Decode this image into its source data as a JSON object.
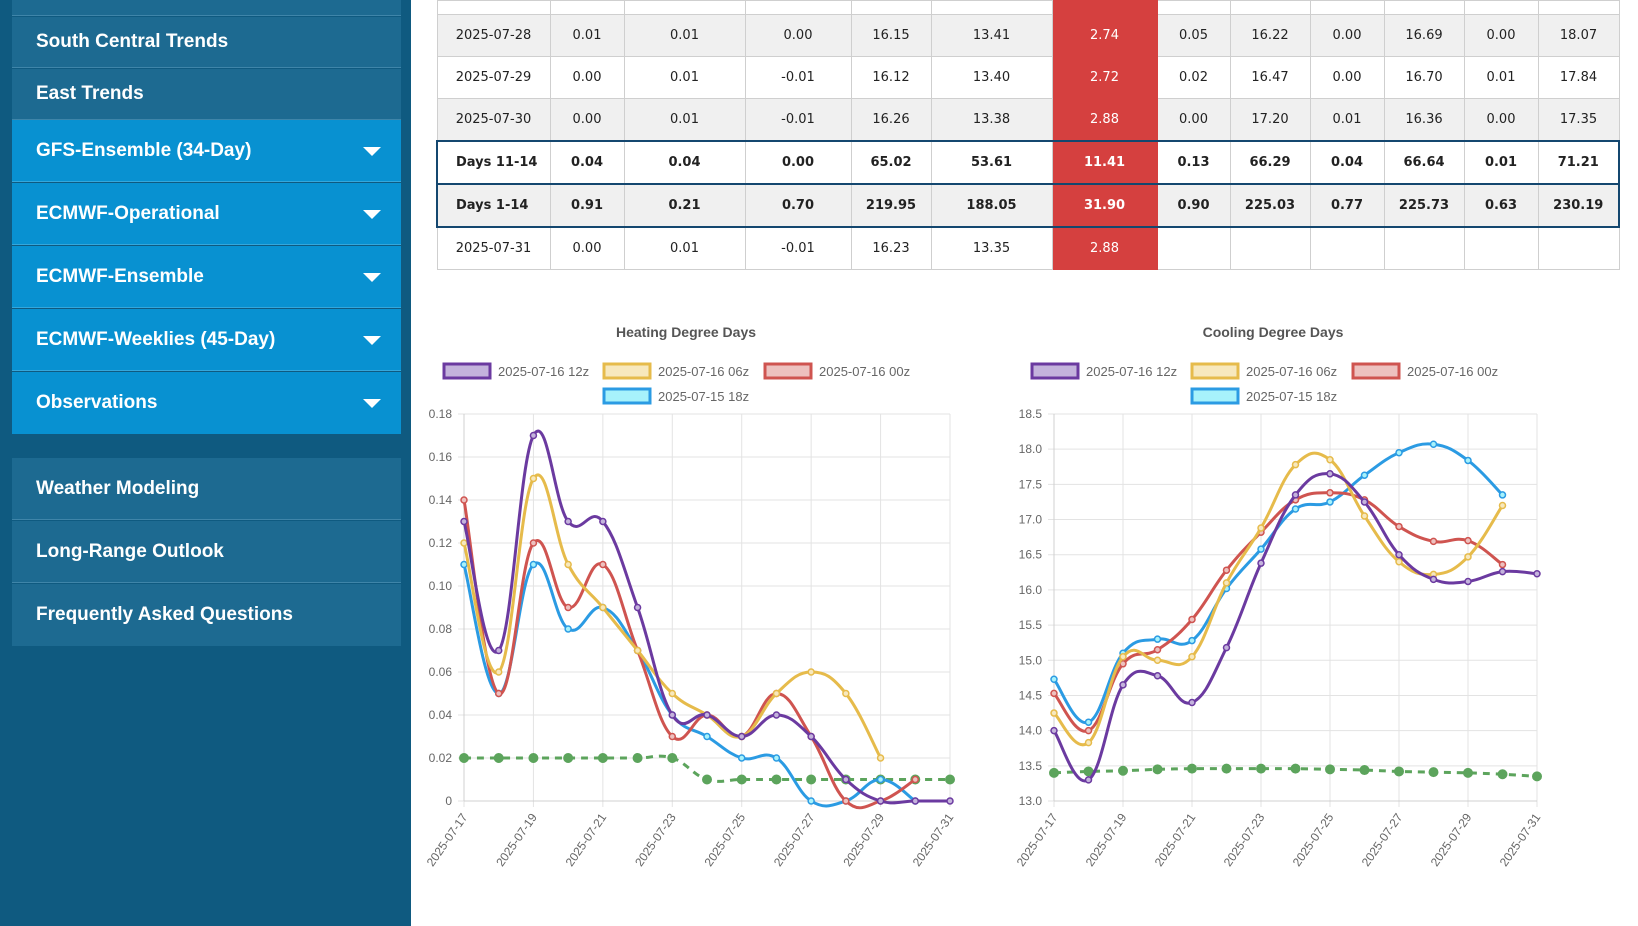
{
  "sidebar": {
    "items": [
      {
        "label": "South Central Trends",
        "has_caret": false
      },
      {
        "label": "East Trends",
        "has_caret": false
      },
      {
        "label": "GFS-Ensemble (34-Day)",
        "has_caret": true
      },
      {
        "label": "ECMWF-Operational",
        "has_caret": true
      },
      {
        "label": "ECMWF-Ensemble",
        "has_caret": true
      },
      {
        "label": "ECMWF-Weeklies (45-Day)",
        "has_caret": true
      },
      {
        "label": "Observations",
        "has_caret": true
      },
      {
        "label": "Weather Modeling",
        "has_caret": false
      },
      {
        "label": "Long-Range Outlook",
        "has_caret": false
      },
      {
        "label": "Frequently Asked Questions",
        "has_caret": false
      }
    ]
  },
  "table": {
    "highlight_color": "#d5403f",
    "rows": [
      [
        "",
        "",
        "",
        "",
        "",
        "",
        "",
        "",
        "",
        "",
        "",
        "",
        ""
      ],
      [
        "2025-07-28",
        "0.01",
        "0.01",
        "0.00",
        "16.15",
        "13.41",
        "2.74",
        "0.05",
        "16.22",
        "0.00",
        "16.69",
        "0.00",
        "18.07"
      ],
      [
        "2025-07-29",
        "0.00",
        "0.01",
        "-0.01",
        "16.12",
        "13.40",
        "2.72",
        "0.02",
        "16.47",
        "0.00",
        "16.70",
        "0.01",
        "17.84"
      ],
      [
        "2025-07-30",
        "0.00",
        "0.01",
        "-0.01",
        "16.26",
        "13.38",
        "2.88",
        "0.00",
        "17.20",
        "0.01",
        "16.36",
        "0.00",
        "17.35"
      ],
      [
        "Days 11-14",
        "0.04",
        "0.04",
        "0.00",
        "65.02",
        "53.61",
        "11.41",
        "0.13",
        "66.29",
        "0.04",
        "66.64",
        "0.01",
        "71.21"
      ],
      [
        "Days 1-14",
        "0.91",
        "0.21",
        "0.70",
        "219.95",
        "188.05",
        "31.90",
        "0.90",
        "225.03",
        "0.77",
        "225.73",
        "0.63",
        "230.19"
      ],
      [
        "2025-07-31",
        "0.00",
        "0.01",
        "-0.01",
        "16.23",
        "13.35",
        "2.88",
        "",
        "",
        "",
        "",
        "",
        ""
      ]
    ]
  },
  "chart_data": [
    {
      "type": "line",
      "title": "Heating Degree Days",
      "x": [
        "2025-07-17",
        "2025-07-18",
        "2025-07-19",
        "2025-07-20",
        "2025-07-21",
        "2025-07-22",
        "2025-07-23",
        "2025-07-24",
        "2025-07-25",
        "2025-07-26",
        "2025-07-27",
        "2025-07-28",
        "2025-07-29",
        "2025-07-30",
        "2025-07-31"
      ],
      "x_tick_labels": [
        "2025-07-17",
        "2025-07-19",
        "2025-07-21",
        "2025-07-23",
        "2025-07-25",
        "2025-07-27",
        "2025-07-29",
        "2025-07-31"
      ],
      "ylim": [
        0,
        0.18
      ],
      "y_ticks": [
        0,
        0.02,
        0.04,
        0.06,
        0.08,
        0.1,
        0.12,
        0.14,
        0.16,
        0.18
      ],
      "y_tick_labels": [
        "0",
        "0.02",
        "0.04",
        "0.06",
        "0.08",
        "0.10",
        "0.12",
        "0.14",
        "0.16",
        "0.18"
      ],
      "legend_position": "top",
      "grid": true,
      "series": [
        {
          "name": "2025-07-16 12z",
          "color": "#6b3aa0",
          "fill": "#c4b3dc",
          "values": [
            0.13,
            0.07,
            0.17,
            0.13,
            0.13,
            0.09,
            0.04,
            0.04,
            0.03,
            0.04,
            0.03,
            0.01,
            0.0,
            0.0,
            0.0
          ]
        },
        {
          "name": "2025-07-16 06z",
          "color": "#e6bb4b",
          "fill": "#f7e8bd",
          "values": [
            0.12,
            0.06,
            0.15,
            0.11,
            0.09,
            0.07,
            0.05,
            0.04,
            0.03,
            0.05,
            0.06,
            0.05,
            0.02,
            null,
            null
          ]
        },
        {
          "name": "2025-07-16 00z",
          "color": "#cf5450",
          "fill": "#edc1bf",
          "values": [
            0.14,
            0.05,
            0.12,
            0.09,
            0.11,
            0.07,
            0.03,
            0.04,
            0.03,
            0.05,
            0.03,
            0.0,
            0.0,
            0.01,
            null
          ]
        },
        {
          "name": "2025-07-15 18z",
          "color": "#2b9be3",
          "fill": "#a7f2fb",
          "values": [
            0.11,
            0.05,
            0.11,
            0.08,
            0.09,
            0.07,
            0.04,
            0.03,
            0.02,
            0.02,
            0.0,
            0.0,
            0.01,
            0.0,
            null
          ]
        },
        {
          "name": "",
          "color": "#5ca45c",
          "dashed": true,
          "values": [
            0.02,
            0.02,
            0.02,
            0.02,
            0.02,
            0.02,
            0.02,
            0.01,
            0.01,
            0.01,
            0.01,
            0.01,
            0.01,
            0.01,
            0.01
          ]
        }
      ]
    },
    {
      "type": "line",
      "title": "Cooling Degree Days",
      "x": [
        "2025-07-17",
        "2025-07-18",
        "2025-07-19",
        "2025-07-20",
        "2025-07-21",
        "2025-07-22",
        "2025-07-23",
        "2025-07-24",
        "2025-07-25",
        "2025-07-26",
        "2025-07-27",
        "2025-07-28",
        "2025-07-29",
        "2025-07-30",
        "2025-07-31"
      ],
      "x_tick_labels": [
        "2025-07-17",
        "2025-07-19",
        "2025-07-21",
        "2025-07-23",
        "2025-07-25",
        "2025-07-27",
        "2025-07-29",
        "2025-07-31"
      ],
      "ylim": [
        13.0,
        18.5
      ],
      "y_ticks": [
        13.0,
        13.5,
        14.0,
        14.5,
        15.0,
        15.5,
        16.0,
        16.5,
        17.0,
        17.5,
        18.0,
        18.5
      ],
      "y_tick_labels": [
        "13.0",
        "13.5",
        "14.0",
        "14.5",
        "15.0",
        "15.5",
        "16.0",
        "16.5",
        "17.0",
        "17.5",
        "18.0",
        "18.5"
      ],
      "legend_position": "top",
      "grid": true,
      "series": [
        {
          "name": "2025-07-16 12z",
          "color": "#6b3aa0",
          "fill": "#c4b3dc",
          "values": [
            14.0,
            13.3,
            14.65,
            14.78,
            14.4,
            15.18,
            16.38,
            17.35,
            17.65,
            17.25,
            16.5,
            16.15,
            16.12,
            16.26,
            16.23
          ]
        },
        {
          "name": "2025-07-16 06z",
          "color": "#e6bb4b",
          "fill": "#f7e8bd",
          "values": [
            14.25,
            13.83,
            15.05,
            15.0,
            15.05,
            16.1,
            16.88,
            17.78,
            17.85,
            17.05,
            16.4,
            16.22,
            16.47,
            17.2,
            null
          ]
        },
        {
          "name": "2025-07-16 00z",
          "color": "#cf5450",
          "fill": "#edc1bf",
          "values": [
            14.53,
            14.0,
            14.95,
            15.15,
            15.58,
            16.28,
            16.82,
            17.28,
            17.38,
            17.28,
            16.9,
            16.69,
            16.7,
            16.36,
            null
          ]
        },
        {
          "name": "2025-07-15 18z",
          "color": "#2b9be3",
          "fill": "#a7f2fb",
          "values": [
            14.73,
            14.12,
            15.1,
            15.3,
            15.28,
            16.02,
            16.58,
            17.15,
            17.25,
            17.63,
            17.95,
            18.07,
            17.84,
            17.35,
            null
          ]
        },
        {
          "name": "",
          "color": "#5ca45c",
          "dashed": true,
          "values": [
            13.4,
            13.42,
            13.43,
            13.45,
            13.46,
            13.46,
            13.46,
            13.46,
            13.45,
            13.44,
            13.42,
            13.41,
            13.4,
            13.38,
            13.35
          ]
        }
      ]
    }
  ]
}
